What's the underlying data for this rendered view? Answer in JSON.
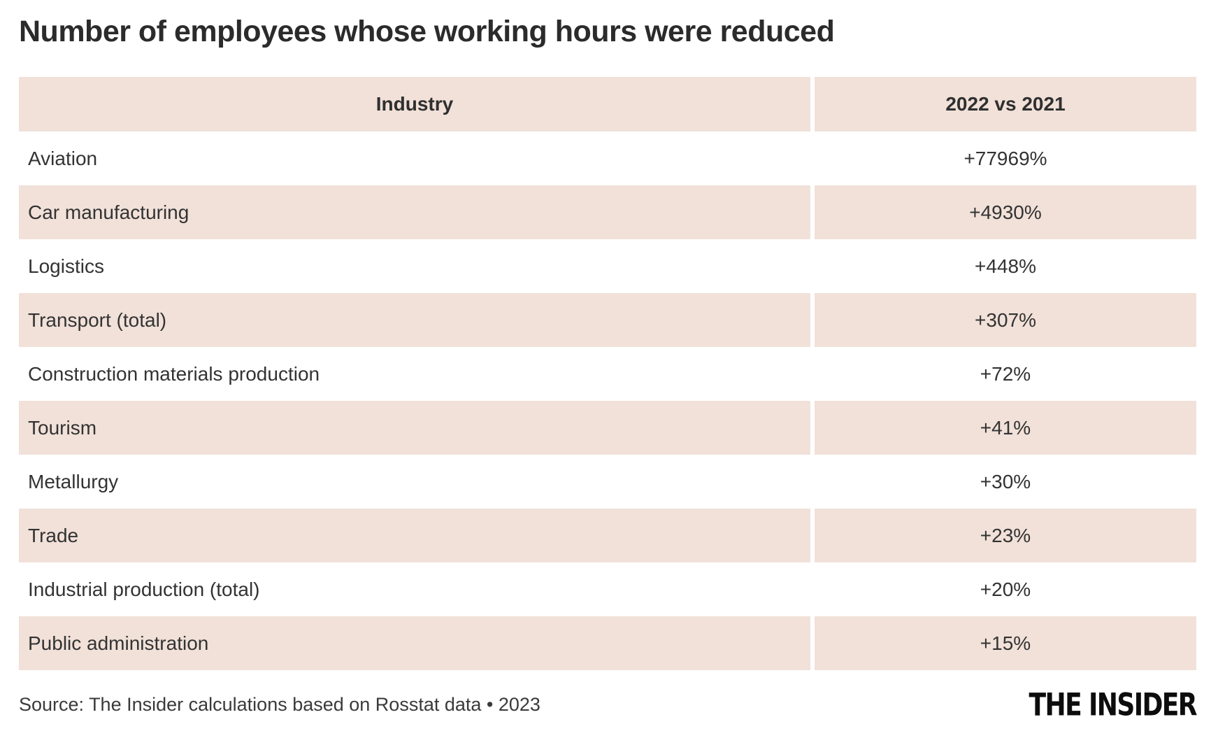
{
  "title": "Number of employees whose working hours were reduced",
  "chart_data": {
    "type": "table",
    "title": "Number of employees whose working hours were reduced",
    "columns": [
      "Industry",
      "2022 vs 2021"
    ],
    "rows": [
      {
        "industry": "Aviation",
        "change": "+77969%"
      },
      {
        "industry": "Car manufacturing",
        "change": "+4930%"
      },
      {
        "industry": "Logistics",
        "change": "+448%"
      },
      {
        "industry": "Transport (total)",
        "change": "+307%"
      },
      {
        "industry": "Construction materials production",
        "change": "+72%"
      },
      {
        "industry": "Tourism",
        "change": "+41%"
      },
      {
        "industry": "Metallurgy",
        "change": "+30%"
      },
      {
        "industry": "Trade",
        "change": "+23%"
      },
      {
        "industry": "Industrial production (total)",
        "change": "+20%"
      },
      {
        "industry": "Public administration",
        "change": "+15%"
      }
    ],
    "layout": {
      "row_shading": "alternating, header and even data rows shaded",
      "accent_color": "#f1e1d9",
      "divider_color": "#ffffff"
    }
  },
  "footer": {
    "source": "Source: The Insider calculations based on Rosstat data • 2023",
    "logo": "THE INSIDER"
  }
}
